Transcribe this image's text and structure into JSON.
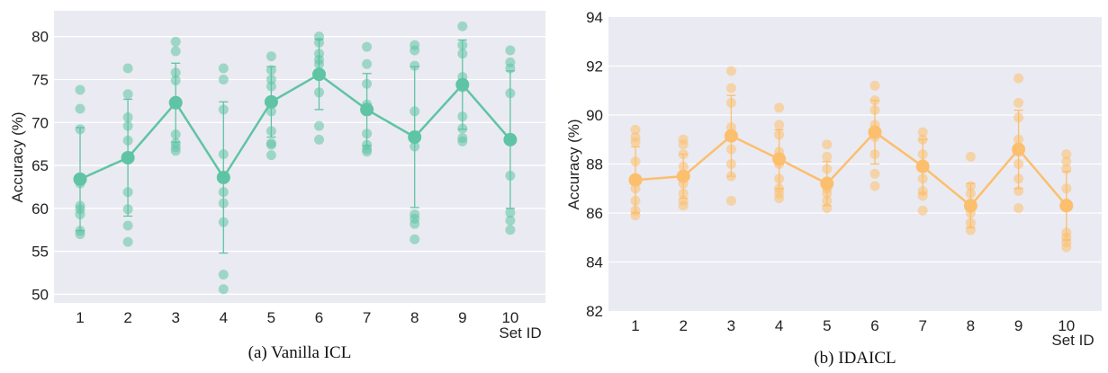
{
  "colors": {
    "vanilla": "#5fc4a3",
    "idaicl": "#fcbf6d",
    "plot_bg": "#eaeaf2",
    "grid": "#ffffff"
  },
  "chart_data": [
    {
      "type": "scatter",
      "title": "",
      "caption": "(a) Vanilla ICL",
      "xlabel": "Set ID",
      "ylabel": "Accuracy (%)",
      "categories": [
        "1",
        "2",
        "3",
        "4",
        "5",
        "6",
        "7",
        "8",
        "9",
        "10"
      ],
      "ylim": [
        49,
        83
      ],
      "yticks": [
        50,
        55,
        60,
        65,
        70,
        75,
        80
      ],
      "grid": true,
      "points": [
        [
          73.8,
          71.6,
          69.2,
          62.9,
          60.3,
          59.9,
          59.3,
          57.4,
          57.0
        ],
        [
          76.3,
          73.3,
          70.6,
          69.6,
          67.9,
          61.9,
          59.9,
          58.0,
          56.1
        ],
        [
          79.4,
          78.3,
          75.8,
          74.9,
          72.3,
          68.6,
          67.6,
          67.1,
          66.7
        ],
        [
          76.3,
          75.0,
          71.5,
          66.3,
          61.9,
          60.6,
          58.4,
          52.3,
          50.6
        ],
        [
          77.7,
          76.1,
          75.0,
          74.2,
          71.3,
          69.0,
          67.6,
          67.4,
          66.2
        ],
        [
          80.0,
          79.3,
          78.0,
          77.3,
          76.8,
          73.5,
          69.6,
          68.0
        ],
        [
          78.8,
          76.8,
          74.5,
          72.1,
          71.4,
          68.7,
          67.4,
          66.9,
          66.6
        ],
        [
          79.0,
          78.4,
          76.6,
          71.3,
          67.2,
          59.3,
          58.8,
          58.2,
          56.4
        ],
        [
          81.2,
          79.0,
          78.0,
          75.3,
          74.1,
          70.7,
          69.3,
          68.2,
          67.8
        ],
        [
          78.4,
          77.0,
          76.3,
          73.4,
          67.9,
          63.8,
          59.5,
          58.6,
          57.5
        ]
      ],
      "mean": [
        63.4,
        65.9,
        72.3,
        63.6,
        72.4,
        75.6,
        71.5,
        68.3,
        74.4,
        68.0
      ],
      "err_low": [
        57.4,
        59.1,
        67.7,
        54.8,
        68.3,
        71.5,
        67.3,
        60.1,
        69.2,
        60.0
      ],
      "err_high": [
        69.4,
        72.7,
        76.9,
        72.4,
        76.5,
        79.7,
        75.7,
        76.5,
        79.6,
        76.0
      ]
    },
    {
      "type": "scatter",
      "title": "",
      "caption": "(b) IDAICL",
      "xlabel": "Set ID",
      "ylabel": "Accuracy (%)",
      "categories": [
        "1",
        "2",
        "3",
        "4",
        "5",
        "6",
        "7",
        "8",
        "9",
        "10"
      ],
      "ylim": [
        82,
        94
      ],
      "yticks": [
        82,
        84,
        86,
        88,
        90,
        92,
        94
      ],
      "grid": true,
      "points": [
        [
          89.4,
          89.1,
          88.9,
          88.1,
          87.4,
          87.0,
          86.5,
          86.1,
          85.9
        ],
        [
          89.0,
          88.8,
          88.4,
          87.9,
          87.2,
          86.8,
          86.5,
          86.3
        ],
        [
          91.8,
          91.1,
          90.5,
          89.5,
          88.6,
          88.0,
          87.5,
          86.5
        ],
        [
          90.3,
          89.6,
          89.2,
          88.5,
          88.0,
          87.4,
          87.0,
          86.8,
          86.6
        ],
        [
          88.8,
          88.3,
          87.8,
          87.3,
          87.0,
          86.8,
          86.5,
          86.2
        ],
        [
          91.2,
          90.6,
          90.2,
          89.6,
          89.1,
          88.4,
          87.6,
          87.1
        ],
        [
          89.3,
          89.0,
          88.4,
          88.0,
          87.4,
          86.9,
          86.7,
          86.1
        ],
        [
          88.3,
          87.1,
          86.8,
          86.4,
          86.2,
          86.0,
          85.6,
          85.3
        ],
        [
          91.5,
          90.5,
          89.9,
          89.0,
          88.5,
          88.0,
          87.4,
          86.9,
          86.2
        ],
        [
          88.4,
          88.1,
          87.8,
          87.0,
          86.4,
          85.2,
          85.0,
          84.8,
          84.6
        ]
      ],
      "mean": [
        87.35,
        87.5,
        89.15,
        88.2,
        87.2,
        89.3,
        87.9,
        86.3,
        88.6,
        86.3
      ],
      "err_low": [
        86.0,
        86.6,
        87.5,
        87.0,
        86.3,
        88.0,
        86.8,
        85.4,
        87.0,
        84.9
      ],
      "err_high": [
        88.7,
        88.4,
        90.8,
        89.4,
        88.1,
        90.6,
        89.0,
        87.2,
        90.2,
        87.7
      ]
    }
  ]
}
